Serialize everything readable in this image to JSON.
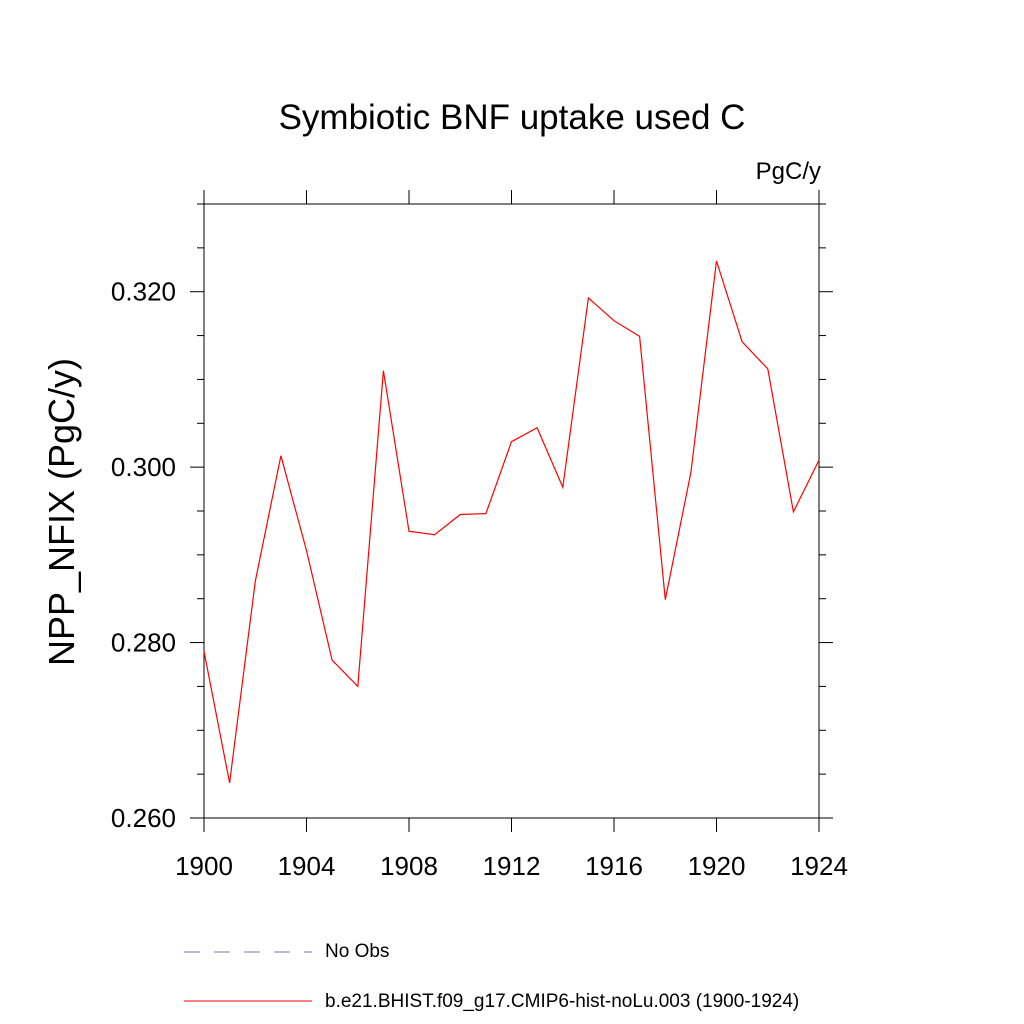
{
  "chart_data": {
    "type": "line",
    "title": "Symbiotic BNF uptake used C",
    "units": "PgC/y",
    "ylabel": "NPP_NFIX  (PgC/y)",
    "xlabel": "",
    "xlim": [
      1900,
      1924
    ],
    "ylim": [
      0.26,
      0.33
    ],
    "x_ticks": [
      1900,
      1904,
      1908,
      1912,
      1916,
      1920,
      1924
    ],
    "x_tick_labels": [
      "1900",
      "1904",
      "1908",
      "1912",
      "1916",
      "1920",
      "1924"
    ],
    "y_ticks": [
      0.26,
      0.28,
      0.3,
      0.32
    ],
    "y_tick_labels": [
      "0.260",
      "0.280",
      "0.300",
      "0.320"
    ],
    "series": [
      {
        "name": "b.e21.BHIST.f09_g17.CMIP6-hist-noLu.003 (1900-1924)",
        "color": "#ff0000",
        "x": [
          1900,
          1901,
          1902,
          1903,
          1904,
          1905,
          1906,
          1907,
          1908,
          1909,
          1910,
          1911,
          1912,
          1913,
          1914,
          1915,
          1916,
          1917,
          1918,
          1919,
          1920,
          1921,
          1922,
          1923,
          1924
        ],
        "values": [
          0.279,
          0.264,
          0.287,
          0.3013,
          0.2905,
          0.278,
          0.275,
          0.311,
          0.2927,
          0.2923,
          0.2946,
          0.2947,
          0.3029,
          0.3045,
          0.2977,
          0.3193,
          0.3167,
          0.3149,
          0.2849,
          0.2994,
          0.3235,
          0.3143,
          0.3112,
          0.2949,
          0.3008
        ]
      }
    ],
    "legend": [
      {
        "label": "No Obs",
        "style": "dashed",
        "color": "#7b78b8"
      },
      {
        "label": "b.e21.BHIST.f09_g17.CMIP6-hist-noLu.003 (1900-1924)",
        "style": "solid",
        "color": "#ff0000"
      }
    ]
  }
}
